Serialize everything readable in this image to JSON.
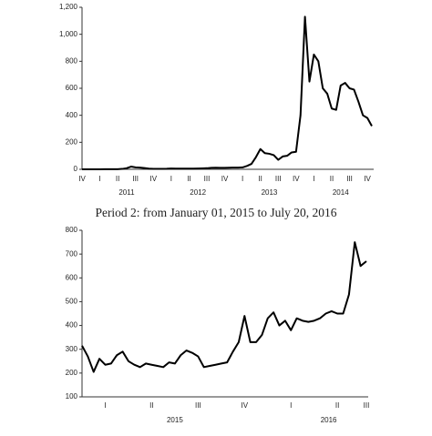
{
  "chart_data": [
    {
      "type": "line",
      "color": "#000000",
      "categories": [
        "IV",
        null,
        null,
        null,
        "I",
        null,
        null,
        null,
        "II",
        null,
        null,
        null,
        "III",
        null,
        null,
        null,
        "IV",
        null,
        null,
        null,
        "I",
        null,
        null,
        null,
        "II",
        null,
        null,
        null,
        "III",
        null,
        null,
        null,
        "IV",
        null,
        null,
        null,
        "I",
        null,
        null,
        null,
        "II",
        null,
        null,
        null,
        "III",
        null,
        null,
        null,
        "IV",
        null,
        null,
        null,
        "I",
        null,
        null,
        null,
        "II",
        null,
        null,
        null,
        "III",
        null,
        null,
        null,
        "IV",
        null
      ],
      "values": [
        0.2,
        0.3,
        0.3,
        0.3,
        0.3,
        0.9,
        0.9,
        0.8,
        1,
        3,
        8,
        20,
        14,
        13,
        9,
        5,
        3,
        3,
        3,
        4,
        6,
        5,
        5,
        5,
        5,
        5,
        6,
        7,
        8,
        11,
        12,
        11,
        11,
        12,
        13,
        13,
        14,
        25,
        40,
        90,
        150,
        120,
        115,
        105,
        70,
        95,
        100,
        125,
        130,
        400,
        1130,
        650,
        850,
        800,
        600,
        560,
        450,
        440,
        620,
        640,
        600,
        590,
        500,
        400,
        380,
        320
      ],
      "year_labels": [
        "2011",
        "2012",
        "2013",
        "2014"
      ],
      "ylim": [
        0,
        1200
      ],
      "yticks": [
        0,
        200,
        400,
        600,
        800,
        {
          "value": 1000,
          "label": "1,000"
        },
        {
          "value": 1200,
          "label": "1,200"
        }
      ]
    },
    {
      "type": "line",
      "color": "#000000",
      "title": "Period 2: from January 01, 2015 to July 20, 2016",
      "categories": [
        null,
        null,
        null,
        null,
        "I",
        null,
        null,
        null,
        null,
        null,
        null,
        null,
        "II",
        null,
        null,
        null,
        null,
        null,
        null,
        null,
        "III",
        null,
        null,
        null,
        null,
        null,
        null,
        null,
        "IV",
        null,
        null,
        null,
        null,
        null,
        null,
        null,
        "I",
        null,
        null,
        null,
        null,
        null,
        null,
        null,
        "II",
        null,
        null,
        null,
        null,
        "III"
      ],
      "values": [
        315,
        270,
        205,
        260,
        235,
        240,
        275,
        290,
        250,
        235,
        225,
        240,
        235,
        230,
        225,
        245,
        240,
        275,
        295,
        285,
        270,
        225,
        230,
        235,
        240,
        245,
        290,
        330,
        440,
        330,
        330,
        360,
        430,
        455,
        400,
        420,
        380,
        430,
        420,
        415,
        420,
        430,
        450,
        460,
        450,
        450,
        530,
        750,
        650,
        670
      ],
      "year_labels": [
        "2015",
        "2016"
      ],
      "ylim": [
        100,
        800
      ],
      "yticks": [
        100,
        200,
        300,
        400,
        500,
        600,
        700,
        800
      ]
    }
  ]
}
